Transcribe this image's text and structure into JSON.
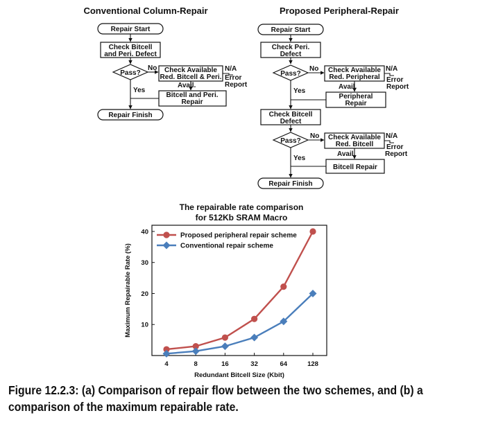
{
  "flow_left": {
    "title": "Conventional Column-Repair",
    "start": "Repair Start",
    "check_line1": "Check Bitcell",
    "check_line2": "and Peri. Defect",
    "decision": "Pass?",
    "no": "No",
    "yes": "Yes",
    "avail_check_line1": "Check Available",
    "avail_check_line2": "Red. Bitcell & Peri.",
    "na": "N/A",
    "error_line1": "Error",
    "error_line2": "Report",
    "avail": "Avail.",
    "repair_line1": "Bitcell and Peri.",
    "repair_line2": "Repair",
    "finish": "Repair Finish"
  },
  "flow_right": {
    "title": "Proposed Peripheral-Repair",
    "start": "Repair Start",
    "check1_line1": "Check Peri.",
    "check1_line2": "Defect",
    "decision1": "Pass?",
    "no1": "No",
    "yes1": "Yes",
    "avail1_line1": "Check Available",
    "avail1_line2": "Red. Peripheral",
    "na1": "N/A",
    "error1_line1": "Error",
    "error1_line2": "Report",
    "availtext1": "Avail.",
    "repair1_line1": "Peripheral",
    "repair1_line2": "Repair",
    "check2_line1": "Check Bitcell",
    "check2_line2": "Defect",
    "decision2": "Pass?",
    "no2": "No",
    "yes2": "Yes",
    "avail2_line1": "Check Available",
    "avail2_line2": "Red. Bitcell",
    "na2": "N/A",
    "error2_line1": "Error",
    "error2_line2": "Report",
    "availtext2": "Avail.",
    "repair2": "Bitcell Repair",
    "finish": "Repair Finish"
  },
  "chart_data": {
    "type": "line",
    "title_line1": "The repairable rate comparison",
    "title_line2": "for 512Kb SRAM Macro",
    "xlabel": "Redundant Bitcell Size (Kbit)",
    "ylabel": "Maximum Repairable Rate (%)",
    "categories": [
      "4",
      "8",
      "16",
      "32",
      "64",
      "128"
    ],
    "yticks": [
      "10",
      "20",
      "30",
      "40"
    ],
    "ylim": [
      0,
      42
    ],
    "series": [
      {
        "name": "Proposed peripheral repair scheme",
        "values": [
          2.0,
          3.0,
          5.8,
          11.8,
          22.2,
          40.0
        ],
        "color": "#c0504d",
        "marker": "circle"
      },
      {
        "name": "Conventional repair scheme",
        "values": [
          0.6,
          1.4,
          3.0,
          5.8,
          11.0,
          20.0
        ],
        "color": "#4a7ebb",
        "marker": "diamond"
      }
    ],
    "legend": "top-left"
  },
  "caption": "Figure 12.2.3: (a) Comparison of repair flow between the two schemes, and (b) a comparison of the maximum repairable rate."
}
